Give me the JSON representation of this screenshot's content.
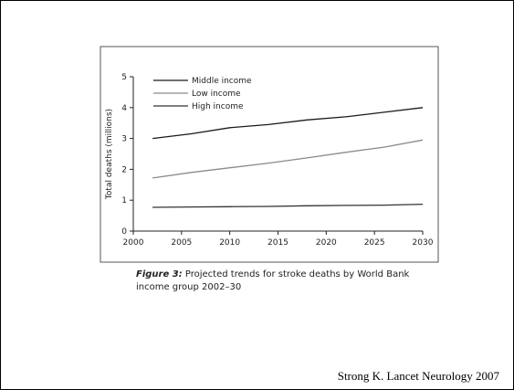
{
  "chart_data": {
    "type": "line",
    "title": "",
    "xlabel": "",
    "ylabel": "Total deaths (millions)",
    "xlim": [
      2000,
      2030
    ],
    "ylim": [
      0,
      5
    ],
    "xticks": [
      2000,
      2005,
      2010,
      2015,
      2020,
      2025,
      2030
    ],
    "yticks": [
      0,
      1,
      2,
      3,
      4,
      5
    ],
    "grid": false,
    "legend_position": "top-left",
    "series": [
      {
        "name": "Middle income",
        "color": "#1a1a1a",
        "x": [
          2002,
          2006,
          2010,
          2014,
          2018,
          2022,
          2026,
          2030
        ],
        "y": [
          3.0,
          3.15,
          3.35,
          3.45,
          3.6,
          3.7,
          3.85,
          4.0
        ]
      },
      {
        "name": "Low income",
        "color": "#8a8a8a",
        "x": [
          2002,
          2006,
          2010,
          2014,
          2018,
          2022,
          2026,
          2030
        ],
        "y": [
          1.72,
          1.9,
          2.05,
          2.2,
          2.37,
          2.55,
          2.72,
          2.95
        ]
      },
      {
        "name": "High income",
        "color": "#333333",
        "x": [
          2002,
          2006,
          2010,
          2014,
          2018,
          2022,
          2026,
          2030
        ],
        "y": [
          0.77,
          0.78,
          0.79,
          0.8,
          0.82,
          0.83,
          0.84,
          0.87
        ]
      }
    ]
  },
  "caption": {
    "label": "Figure 3:",
    "text": " Projected trends for stroke deaths by World Bank income group 2002–30"
  },
  "citation": "Strong K.  Lancet Neurology 2007"
}
